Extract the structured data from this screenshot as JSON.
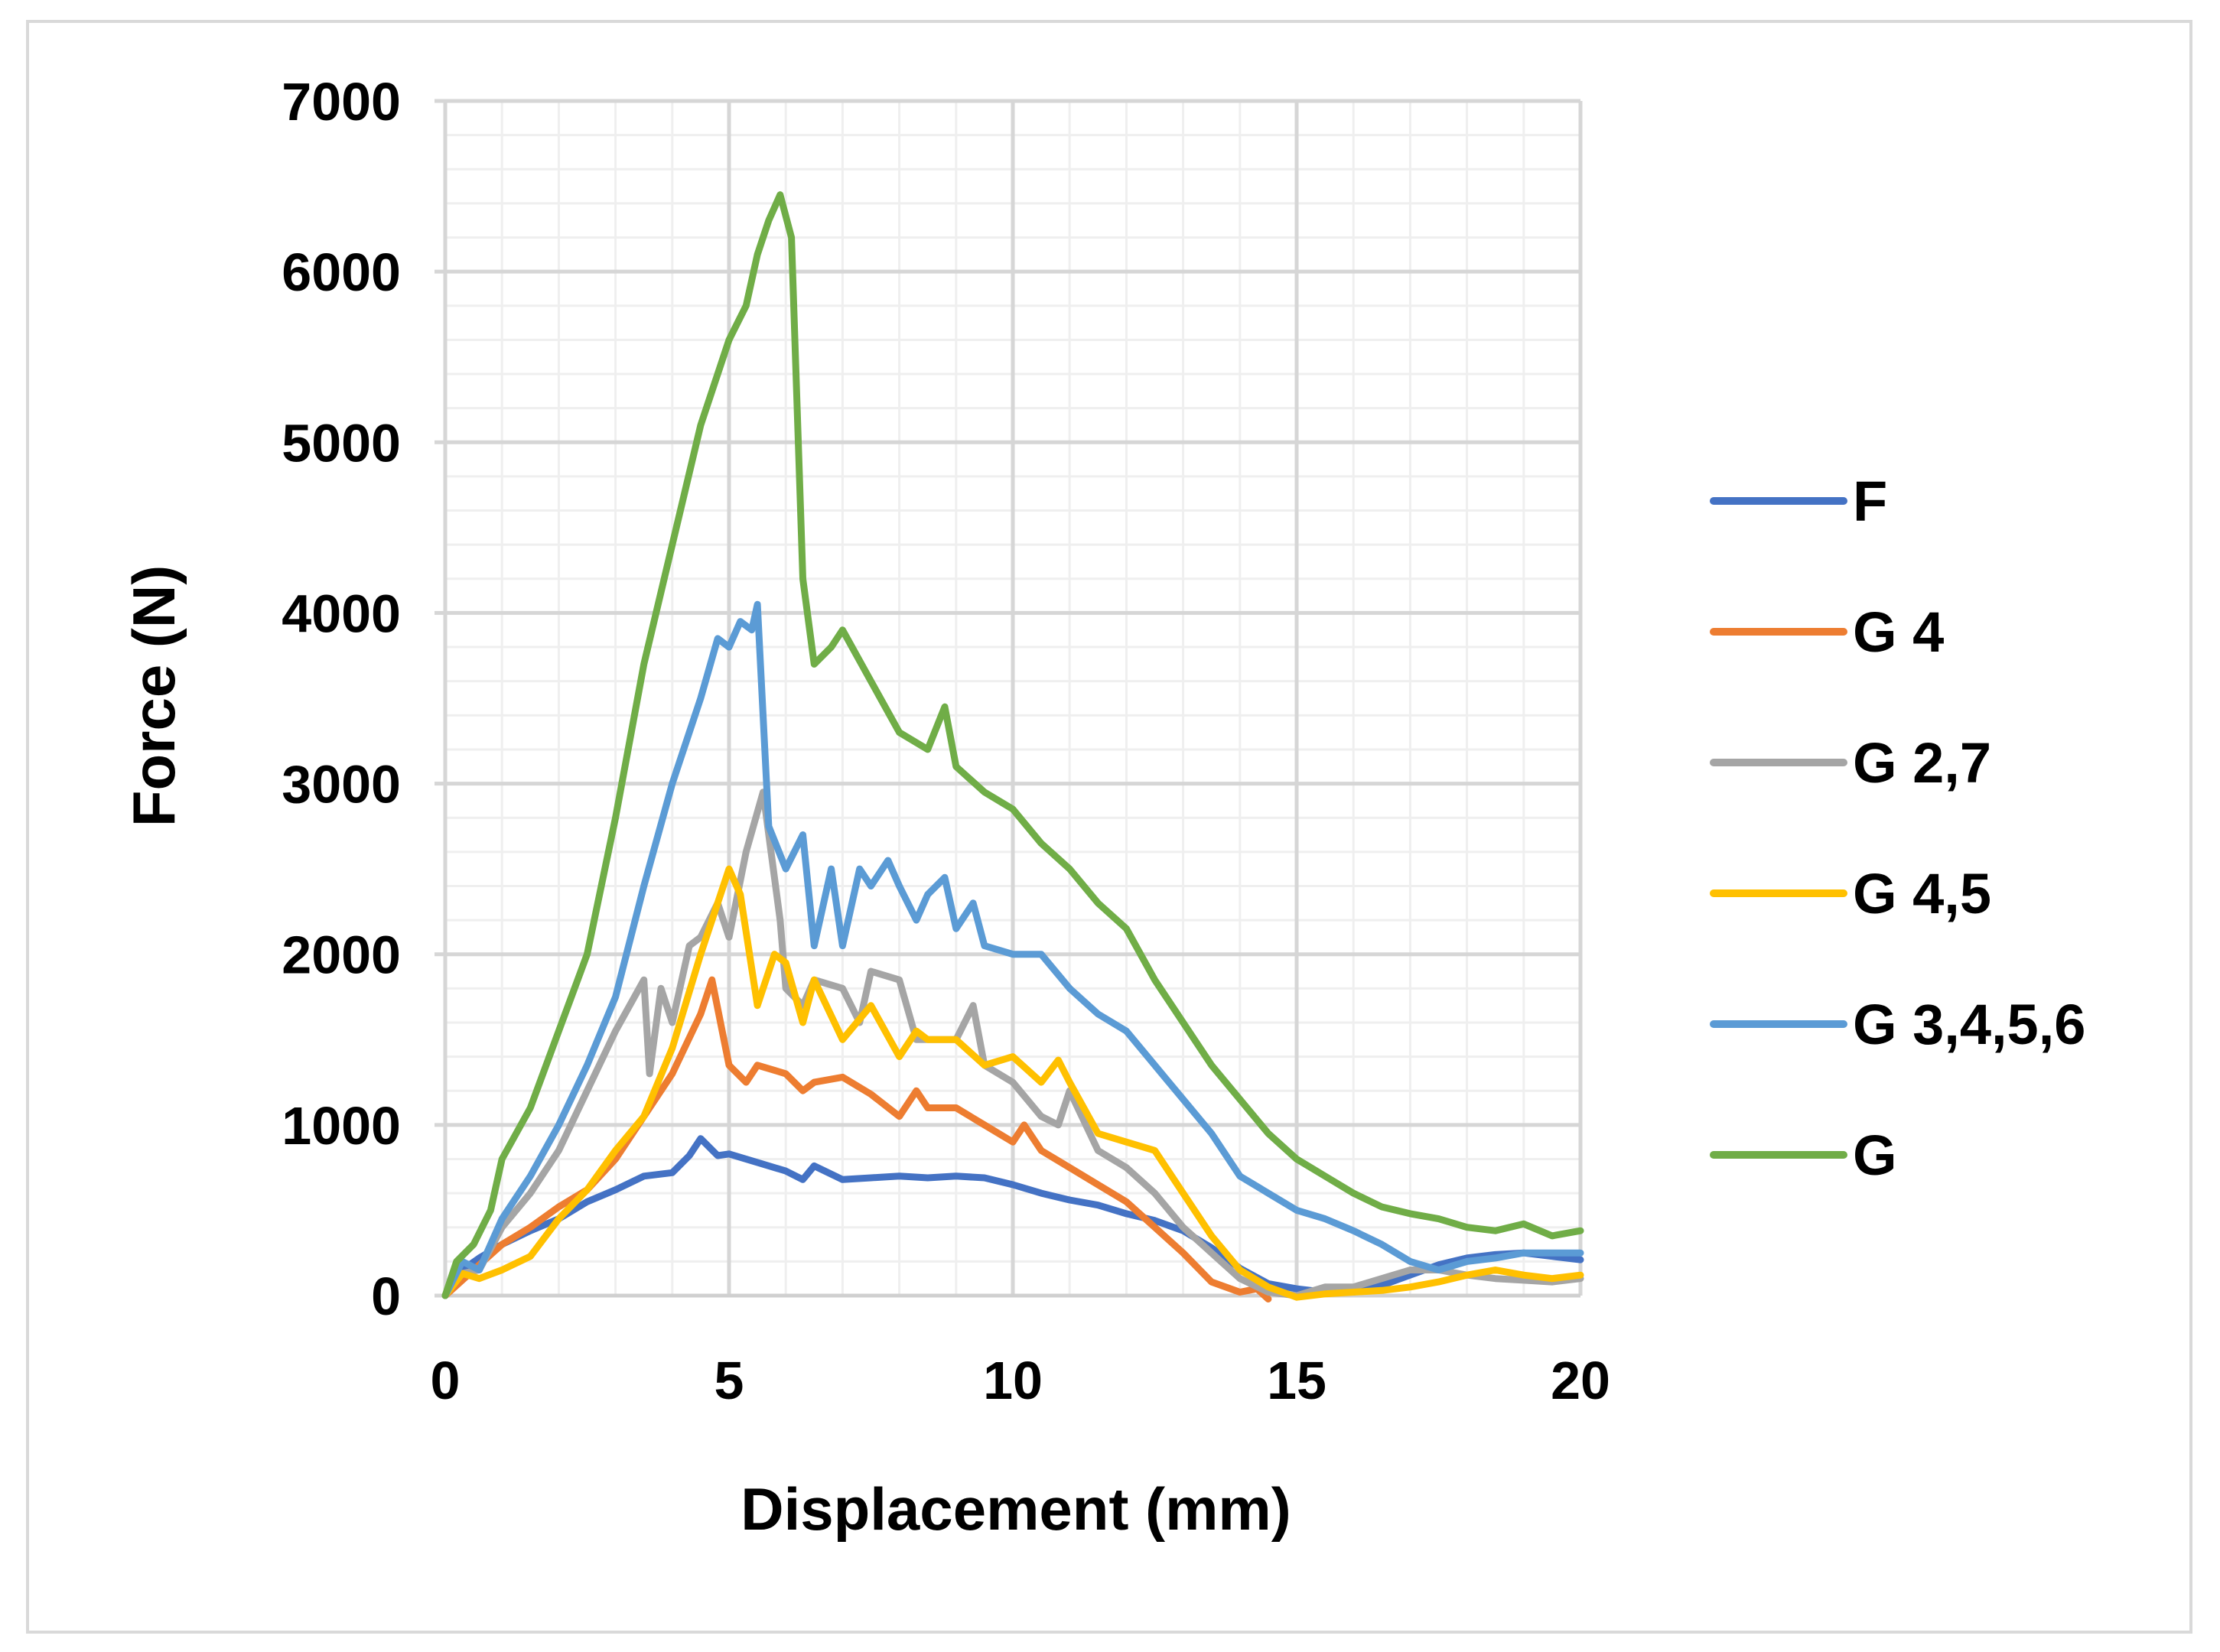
{
  "chart_data": {
    "type": "line",
    "title": "",
    "xlabel": "Displacement (mm)",
    "ylabel": "Force (N)",
    "xlim": [
      0,
      20
    ],
    "ylim": [
      0,
      7000
    ],
    "xticks": [
      0,
      5,
      10,
      15,
      20
    ],
    "yticks": [
      0,
      1000,
      2000,
      3000,
      4000,
      5000,
      6000,
      7000
    ],
    "xtick_labels": [
      "0",
      "5",
      "10",
      "15",
      "20"
    ],
    "ytick_labels": [
      "0",
      "1000",
      "2000",
      "3000",
      "4000",
      "5000",
      "6000",
      "7000"
    ],
    "grid": true,
    "legend_position": "right",
    "series": [
      {
        "name": "F",
        "color": "#4472C4",
        "points": [
          [
            0,
            0
          ],
          [
            0.3,
            150
          ],
          [
            0.6,
            220
          ],
          [
            1,
            300
          ],
          [
            1.5,
            380
          ],
          [
            2,
            450
          ],
          [
            2.5,
            550
          ],
          [
            3,
            620
          ],
          [
            3.5,
            700
          ],
          [
            4,
            720
          ],
          [
            4.3,
            820
          ],
          [
            4.5,
            920
          ],
          [
            4.8,
            820
          ],
          [
            5,
            830
          ],
          [
            5.5,
            780
          ],
          [
            6,
            730
          ],
          [
            6.3,
            680
          ],
          [
            6.5,
            760
          ],
          [
            7,
            680
          ],
          [
            7.5,
            690
          ],
          [
            8,
            700
          ],
          [
            8.5,
            690
          ],
          [
            9,
            700
          ],
          [
            9.5,
            690
          ],
          [
            10,
            650
          ],
          [
            10.5,
            600
          ],
          [
            11,
            560
          ],
          [
            11.5,
            530
          ],
          [
            12,
            480
          ],
          [
            12.5,
            440
          ],
          [
            13,
            380
          ],
          [
            13.5,
            280
          ],
          [
            14,
            160
          ],
          [
            14.5,
            70
          ],
          [
            15,
            40
          ],
          [
            15.5,
            20
          ],
          [
            16,
            20
          ],
          [
            16.5,
            60
          ],
          [
            17,
            120
          ],
          [
            17.5,
            180
          ],
          [
            18,
            220
          ],
          [
            18.5,
            240
          ],
          [
            19,
            250
          ],
          [
            19.5,
            230
          ],
          [
            20,
            210
          ]
        ]
      },
      {
        "name": "G 4",
        "color": "#ED7D31",
        "points": [
          [
            0,
            0
          ],
          [
            0.5,
            150
          ],
          [
            1,
            300
          ],
          [
            1.5,
            400
          ],
          [
            2,
            520
          ],
          [
            2.5,
            620
          ],
          [
            3,
            800
          ],
          [
            3.5,
            1050
          ],
          [
            4,
            1300
          ],
          [
            4.5,
            1650
          ],
          [
            4.7,
            1850
          ],
          [
            5,
            1350
          ],
          [
            5.3,
            1250
          ],
          [
            5.5,
            1350
          ],
          [
            6,
            1300
          ],
          [
            6.3,
            1200
          ],
          [
            6.5,
            1250
          ],
          [
            7,
            1280
          ],
          [
            7.5,
            1180
          ],
          [
            8,
            1050
          ],
          [
            8.3,
            1200
          ],
          [
            8.5,
            1100
          ],
          [
            9,
            1100
          ],
          [
            9.5,
            1000
          ],
          [
            10,
            900
          ],
          [
            10.2,
            1000
          ],
          [
            10.5,
            850
          ],
          [
            11,
            750
          ],
          [
            11.5,
            650
          ],
          [
            12,
            550
          ],
          [
            12.5,
            400
          ],
          [
            13,
            250
          ],
          [
            13.5,
            80
          ],
          [
            14,
            20
          ],
          [
            14.3,
            40
          ],
          [
            14.5,
            -20
          ]
        ]
      },
      {
        "name": "G 2,7",
        "color": "#A5A5A5",
        "points": [
          [
            0,
            0
          ],
          [
            0.3,
            130
          ],
          [
            0.6,
            150
          ],
          [
            1,
            400
          ],
          [
            1.5,
            600
          ],
          [
            2,
            850
          ],
          [
            2.5,
            1200
          ],
          [
            3,
            1550
          ],
          [
            3.5,
            1850
          ],
          [
            3.6,
            1300
          ],
          [
            3.8,
            1800
          ],
          [
            4,
            1600
          ],
          [
            4.3,
            2050
          ],
          [
            4.5,
            2100
          ],
          [
            4.8,
            2300
          ],
          [
            5,
            2100
          ],
          [
            5.3,
            2600
          ],
          [
            5.6,
            2950
          ],
          [
            5.9,
            2200
          ],
          [
            6,
            1800
          ],
          [
            6.3,
            1700
          ],
          [
            6.5,
            1850
          ],
          [
            7,
            1800
          ],
          [
            7.3,
            1600
          ],
          [
            7.5,
            1900
          ],
          [
            8,
            1850
          ],
          [
            8.3,
            1500
          ],
          [
            8.5,
            1500
          ],
          [
            9,
            1500
          ],
          [
            9.3,
            1700
          ],
          [
            9.5,
            1350
          ],
          [
            10,
            1250
          ],
          [
            10.5,
            1050
          ],
          [
            10.8,
            1000
          ],
          [
            11,
            1200
          ],
          [
            11.5,
            850
          ],
          [
            12,
            750
          ],
          [
            12.5,
            600
          ],
          [
            13,
            400
          ],
          [
            13.5,
            250
          ],
          [
            14,
            100
          ],
          [
            14.5,
            20
          ],
          [
            15,
            0
          ],
          [
            15.5,
            50
          ],
          [
            16,
            50
          ],
          [
            16.5,
            100
          ],
          [
            17,
            150
          ],
          [
            17.5,
            150
          ],
          [
            18,
            120
          ],
          [
            18.5,
            100
          ],
          [
            19,
            90
          ],
          [
            19.5,
            80
          ],
          [
            20,
            100
          ]
        ]
      },
      {
        "name": "G 4,5",
        "color": "#FFC000",
        "points": [
          [
            0,
            0
          ],
          [
            0.3,
            130
          ],
          [
            0.6,
            100
          ],
          [
            1,
            150
          ],
          [
            1.5,
            230
          ],
          [
            2,
            450
          ],
          [
            2.5,
            620
          ],
          [
            3,
            850
          ],
          [
            3.5,
            1050
          ],
          [
            4,
            1450
          ],
          [
            4.5,
            2000
          ],
          [
            5,
            2500
          ],
          [
            5.2,
            2350
          ],
          [
            5.5,
            1700
          ],
          [
            5.8,
            2000
          ],
          [
            6,
            1950
          ],
          [
            6.3,
            1600
          ],
          [
            6.5,
            1850
          ],
          [
            7,
            1500
          ],
          [
            7.5,
            1700
          ],
          [
            8,
            1400
          ],
          [
            8.3,
            1550
          ],
          [
            8.5,
            1500
          ],
          [
            9,
            1500
          ],
          [
            9.5,
            1350
          ],
          [
            10,
            1400
          ],
          [
            10.5,
            1250
          ],
          [
            10.8,
            1380
          ],
          [
            11,
            1250
          ],
          [
            11.5,
            950
          ],
          [
            12,
            900
          ],
          [
            12.5,
            850
          ],
          [
            13,
            600
          ],
          [
            13.5,
            350
          ],
          [
            14,
            150
          ],
          [
            14.5,
            50
          ],
          [
            15,
            -10
          ],
          [
            15.5,
            10
          ],
          [
            16,
            20
          ],
          [
            16.5,
            30
          ],
          [
            17,
            50
          ],
          [
            17.5,
            80
          ],
          [
            18,
            120
          ],
          [
            18.5,
            150
          ],
          [
            19,
            120
          ],
          [
            19.5,
            100
          ],
          [
            20,
            120
          ]
        ]
      },
      {
        "name": "G 3,4,5,6",
        "color": "#5B9BD5",
        "points": [
          [
            0,
            0
          ],
          [
            0.3,
            200
          ],
          [
            0.6,
            150
          ],
          [
            1,
            450
          ],
          [
            1.5,
            700
          ],
          [
            2,
            1000
          ],
          [
            2.5,
            1350
          ],
          [
            3,
            1750
          ],
          [
            3.5,
            2400
          ],
          [
            4,
            3000
          ],
          [
            4.5,
            3500
          ],
          [
            4.8,
            3850
          ],
          [
            5,
            3800
          ],
          [
            5.2,
            3950
          ],
          [
            5.4,
            3900
          ],
          [
            5.5,
            4050
          ],
          [
            5.7,
            2750
          ],
          [
            6,
            2500
          ],
          [
            6.3,
            2700
          ],
          [
            6.5,
            2050
          ],
          [
            6.8,
            2500
          ],
          [
            7,
            2050
          ],
          [
            7.3,
            2500
          ],
          [
            7.5,
            2400
          ],
          [
            7.8,
            2550
          ],
          [
            8,
            2400
          ],
          [
            8.3,
            2200
          ],
          [
            8.5,
            2350
          ],
          [
            8.8,
            2450
          ],
          [
            9,
            2150
          ],
          [
            9.3,
            2300
          ],
          [
            9.5,
            2050
          ],
          [
            10,
            2000
          ],
          [
            10.5,
            2000
          ],
          [
            11,
            1800
          ],
          [
            11.5,
            1650
          ],
          [
            12,
            1550
          ],
          [
            12.5,
            1350
          ],
          [
            13,
            1150
          ],
          [
            13.5,
            950
          ],
          [
            14,
            700
          ],
          [
            14.5,
            600
          ],
          [
            15,
            500
          ],
          [
            15.5,
            450
          ],
          [
            16,
            380
          ],
          [
            16.5,
            300
          ],
          [
            17,
            200
          ],
          [
            17.5,
            150
          ],
          [
            18,
            200
          ],
          [
            18.5,
            220
          ],
          [
            19,
            250
          ],
          [
            19.5,
            250
          ],
          [
            20,
            250
          ]
        ]
      },
      {
        "name": "G",
        "color": "#70AD47",
        "points": [
          [
            0,
            0
          ],
          [
            0.2,
            200
          ],
          [
            0.5,
            300
          ],
          [
            0.8,
            500
          ],
          [
            1,
            800
          ],
          [
            1.5,
            1100
          ],
          [
            2,
            1550
          ],
          [
            2.5,
            2000
          ],
          [
            3,
            2800
          ],
          [
            3.5,
            3700
          ],
          [
            4,
            4400
          ],
          [
            4.5,
            5100
          ],
          [
            5,
            5600
          ],
          [
            5.3,
            5800
          ],
          [
            5.5,
            6100
          ],
          [
            5.7,
            6300
          ],
          [
            5.9,
            6450
          ],
          [
            6.1,
            6200
          ],
          [
            6.3,
            4200
          ],
          [
            6.5,
            3700
          ],
          [
            6.8,
            3800
          ],
          [
            7,
            3900
          ],
          [
            7.5,
            3600
          ],
          [
            8,
            3300
          ],
          [
            8.5,
            3200
          ],
          [
            8.8,
            3450
          ],
          [
            9,
            3100
          ],
          [
            9.5,
            2950
          ],
          [
            10,
            2850
          ],
          [
            10.5,
            2650
          ],
          [
            11,
            2500
          ],
          [
            11.5,
            2300
          ],
          [
            12,
            2150
          ],
          [
            12.5,
            1850
          ],
          [
            13,
            1600
          ],
          [
            13.5,
            1350
          ],
          [
            14,
            1150
          ],
          [
            14.5,
            950
          ],
          [
            15,
            800
          ],
          [
            15.5,
            700
          ],
          [
            16,
            600
          ],
          [
            16.5,
            520
          ],
          [
            17,
            480
          ],
          [
            17.5,
            450
          ],
          [
            18,
            400
          ],
          [
            18.5,
            380
          ],
          [
            19,
            420
          ],
          [
            19.5,
            350
          ],
          [
            20,
            380
          ]
        ]
      }
    ]
  }
}
